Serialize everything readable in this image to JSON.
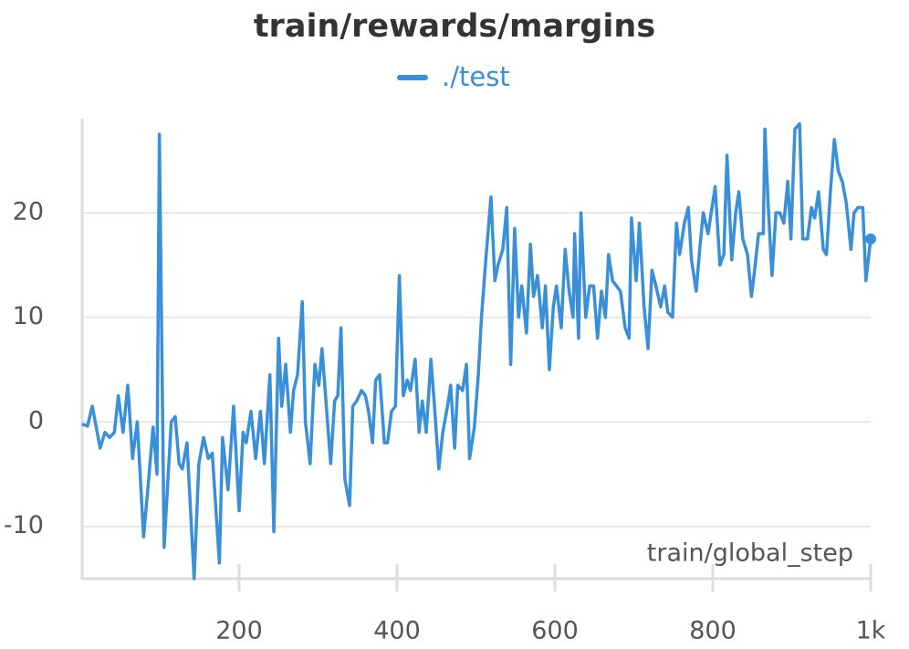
{
  "chart_data": {
    "type": "line",
    "title": "train/rewards/margins",
    "xlabel": "train/global_step",
    "x": [
      1,
      8,
      14,
      24,
      30,
      36,
      42,
      47,
      53,
      59,
      65,
      71,
      79,
      86,
      91,
      96,
      99,
      105,
      114,
      119,
      124,
      128,
      134,
      143,
      149,
      155,
      161,
      166,
      175,
      179,
      186,
      193,
      200,
      205,
      209,
      215,
      221,
      227,
      232,
      239,
      244,
      250,
      254,
      259,
      265,
      269,
      274,
      280,
      284,
      290,
      296,
      301,
      305,
      311,
      316,
      321,
      325,
      329,
      334,
      340,
      344,
      349,
      355,
      360,
      364,
      369,
      373,
      378,
      384,
      388,
      393,
      398,
      403,
      408,
      413,
      417,
      423,
      428,
      432,
      437,
      443,
      447,
      453,
      458,
      464,
      468,
      473,
      477,
      483,
      488,
      492,
      498,
      503,
      507,
      513,
      519,
      524,
      528,
      534,
      539,
      544,
      549,
      554,
      558,
      564,
      569,
      573,
      578,
      584,
      588,
      593,
      598,
      602,
      608,
      613,
      618,
      623,
      625,
      630,
      633,
      639,
      644,
      649,
      654,
      659,
      664,
      668,
      673,
      678,
      683,
      689,
      694,
      697,
      703,
      707,
      713,
      718,
      723,
      728,
      734,
      739,
      743,
      749,
      754,
      758,
      764,
      769,
      773,
      779,
      784,
      788,
      794,
      799,
      803,
      809,
      814,
      818,
      824,
      829,
      833,
      838,
      844,
      849,
      853,
      858,
      864,
      866,
      870,
      875,
      880,
      885,
      890,
      895,
      899,
      904,
      910,
      914,
      920,
      925,
      929,
      934,
      940,
      944,
      949,
      954,
      959,
      964,
      969,
      975,
      979,
      984,
      990,
      994,
      1000
    ],
    "series": [
      {
        "name": "./test",
        "color": "#3a8fd9",
        "values": [
          -0.2,
          -0.4,
          1.5,
          -2.5,
          -1,
          -1.5,
          -1,
          2.5,
          -1,
          3.5,
          -3.5,
          0,
          -11,
          -5,
          -0.5,
          -5,
          27.5,
          -12,
          0,
          0.5,
          -4,
          -4.5,
          -2,
          -15,
          -4,
          -1.5,
          -3.5,
          -3,
          -13.5,
          -1.5,
          -6.5,
          1.5,
          -8.5,
          -1,
          -2,
          1,
          -3.5,
          1,
          -4,
          4.5,
          -10.5,
          8,
          1.5,
          5.5,
          -1,
          3,
          4.5,
          11.5,
          0,
          -4,
          5.5,
          3.5,
          7,
          1,
          -4,
          2,
          2.5,
          9,
          -5.5,
          -8,
          1.5,
          2,
          3,
          2.5,
          1,
          -2,
          4,
          4.5,
          -2,
          -2,
          1,
          1.5,
          14,
          2.5,
          4,
          3,
          6,
          -1,
          2,
          -1,
          6,
          2,
          -4.5,
          -1,
          1.5,
          3.5,
          -2.5,
          3.5,
          3,
          5.5,
          -3.5,
          -0.5,
          4.5,
          10,
          16,
          21.5,
          13.5,
          15,
          16.5,
          20.5,
          5.5,
          18.5,
          10,
          13,
          8.5,
          17,
          12,
          14,
          9,
          13,
          5,
          11,
          13,
          9,
          16.5,
          12.5,
          10,
          18,
          8,
          20,
          10,
          13,
          13,
          8,
          12.5,
          10,
          16,
          13.5,
          13,
          12.5,
          9,
          8,
          19.5,
          13.5,
          19,
          11,
          7,
          14.5,
          13,
          11,
          13,
          10.5,
          10,
          19,
          16,
          19,
          20.5,
          15.5,
          12.5,
          17,
          20,
          18,
          20.5,
          22.5,
          15,
          16,
          25.5,
          15.5,
          20,
          22,
          17.5,
          16,
          12,
          14.5,
          18,
          18,
          28,
          21,
          14,
          20,
          20,
          19,
          23,
          17.5,
          28,
          28.5,
          17.5,
          17.5,
          20.5,
          19.5,
          22,
          16.5,
          16,
          22,
          27,
          24,
          23,
          21,
          16.5,
          20,
          20.5,
          20.5,
          13.5,
          17.5
        ]
      }
    ],
    "xlim": [
      0,
      1000
    ],
    "xticks": [
      200,
      400,
      600,
      800,
      {
        "value": 1000,
        "label": "1k"
      }
    ],
    "ylim": [
      -15,
      29
    ],
    "yticks": [
      -10,
      0,
      10,
      20
    ],
    "grid": true
  }
}
